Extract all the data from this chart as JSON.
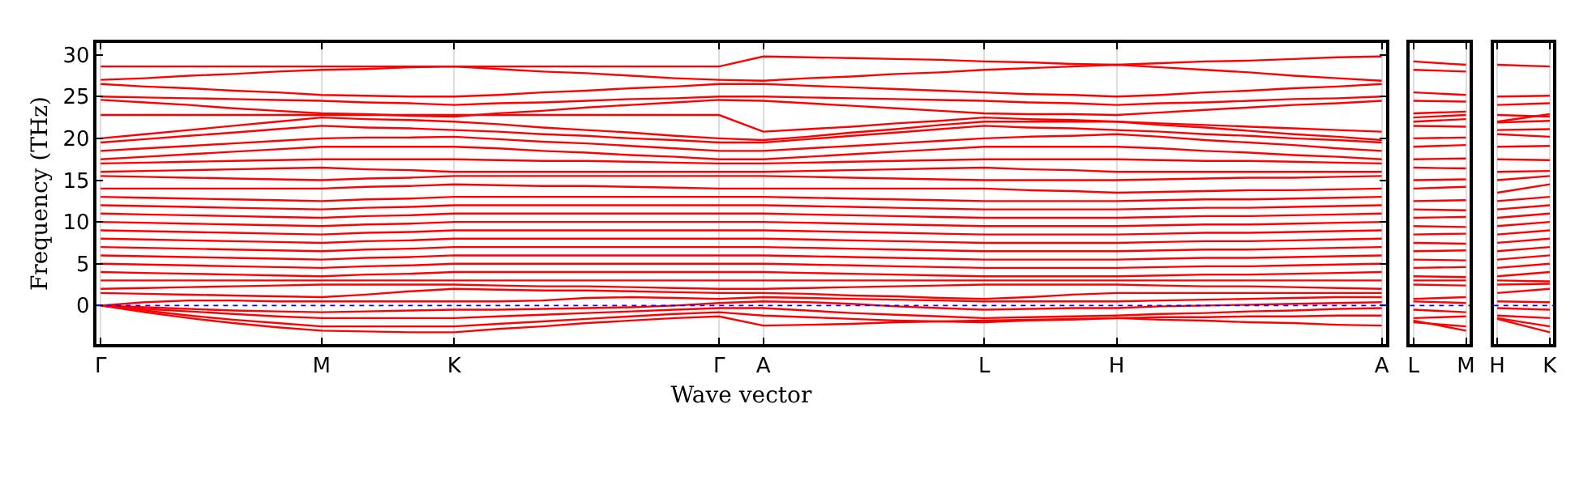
{
  "chart_data": [
    {
      "type": "line",
      "ylabel": "Frequency (THz)",
      "xlabel": "Wave vector",
      "categories": [
        "Γ",
        null,
        null,
        null,
        null,
        "M",
        null,
        null,
        "K",
        null,
        null,
        null,
        null,
        null,
        "Γ",
        "A",
        null,
        null,
        null,
        null,
        "L",
        null,
        null,
        "H",
        null,
        null,
        null,
        null,
        null,
        "A"
      ],
      "ylim": [
        -4.6,
        31.4
      ],
      "yticks": [
        0,
        5,
        10,
        15,
        20,
        25,
        30
      ],
      "grid": "x",
      "line_style": "solid",
      "marker": "none",
      "ref_lines": [
        {
          "axis": "y",
          "value": 0,
          "color": "#0000ff",
          "line_style": "dotted"
        }
      ],
      "series": [
        {
          "color": "#ff0000",
          "values": [
            28.6,
            28.6,
            28.6,
            28.6,
            28.6,
            28.6,
            28.6,
            28.6,
            28.6,
            28.6,
            28.6,
            28.6,
            28.6,
            28.6,
            28.6,
            29.8,
            29.7,
            29.6,
            29.5,
            29.4,
            29.2,
            29.1,
            28.9,
            28.8,
            29.0,
            29.2,
            29.3,
            29.5,
            29.7,
            29.8
          ]
        },
        {
          "color": "#ff0000",
          "values": [
            27.0,
            27.2,
            27.5,
            27.7,
            28.0,
            28.2,
            28.3,
            28.5,
            28.6,
            28.3,
            28.0,
            27.8,
            27.5,
            27.2,
            27.0,
            26.9,
            27.2,
            27.4,
            27.7,
            27.9,
            28.2,
            28.4,
            28.6,
            28.8,
            28.5,
            28.2,
            27.9,
            27.5,
            27.2,
            26.9
          ]
        },
        {
          "color": "#ff0000",
          "values": [
            26.5,
            26.2,
            26.0,
            25.7,
            25.5,
            25.2,
            25.1,
            25.0,
            25.0,
            25.2,
            25.5,
            25.7,
            26.0,
            26.2,
            26.5,
            26.5,
            26.3,
            26.1,
            25.9,
            25.7,
            25.5,
            25.3,
            25.2,
            25.0,
            25.2,
            25.5,
            25.7,
            26.0,
            26.2,
            26.5
          ]
        },
        {
          "color": "#ff0000",
          "values": [
            25.0,
            24.9,
            24.8,
            24.7,
            24.6,
            24.5,
            24.3,
            24.2,
            24.0,
            24.2,
            24.3,
            24.5,
            24.7,
            24.8,
            25.0,
            25.0,
            24.9,
            24.8,
            24.7,
            24.6,
            24.5,
            24.3,
            24.2,
            24.0,
            24.2,
            24.3,
            24.5,
            24.7,
            24.8,
            25.0
          ]
        },
        {
          "color": "#ff0000",
          "values": [
            24.6,
            24.3,
            24.0,
            23.6,
            23.3,
            23.0,
            22.9,
            22.7,
            22.6,
            23.0,
            23.3,
            23.7,
            24.0,
            24.3,
            24.6,
            24.5,
            24.2,
            23.9,
            23.6,
            23.3,
            23.0,
            22.9,
            22.9,
            22.8,
            23.1,
            23.4,
            23.7,
            24.0,
            24.2,
            24.5
          ]
        },
        {
          "color": "#ff0000",
          "values": [
            22.8,
            22.8,
            22.8,
            22.8,
            22.8,
            22.8,
            22.8,
            22.8,
            22.8,
            22.8,
            22.8,
            22.8,
            22.8,
            22.8,
            22.8,
            20.8,
            21.1,
            21.4,
            21.8,
            22.1,
            22.5,
            22.3,
            22.2,
            22.0,
            21.8,
            21.6,
            21.4,
            21.2,
            21.0,
            20.8
          ]
        },
        {
          "color": "#ff0000",
          "values": [
            20.0,
            20.5,
            21.0,
            21.5,
            22.0,
            22.5,
            22.3,
            22.2,
            22.0,
            21.7,
            21.3,
            21.0,
            20.7,
            20.3,
            20.0,
            19.8,
            20.2,
            20.7,
            21.1,
            21.6,
            22.0,
            22.0,
            22.0,
            22.0,
            21.6,
            21.3,
            20.9,
            20.5,
            20.2,
            19.8
          ]
        },
        {
          "color": "#ff0000",
          "values": [
            19.5,
            19.9,
            20.3,
            20.7,
            21.1,
            21.5,
            21.3,
            21.2,
            21.0,
            20.8,
            20.5,
            20.3,
            20.0,
            19.8,
            19.5,
            19.5,
            19.9,
            20.3,
            20.7,
            21.1,
            21.5,
            21.3,
            21.2,
            21.0,
            20.8,
            20.5,
            20.3,
            20.0,
            19.8,
            19.5
          ]
        },
        {
          "color": "#ff0000",
          "values": [
            18.5,
            18.8,
            19.1,
            19.4,
            19.7,
            20.0,
            20.1,
            20.1,
            20.2,
            19.9,
            19.6,
            19.4,
            19.1,
            18.8,
            18.5,
            18.5,
            18.8,
            19.1,
            19.4,
            19.7,
            20.0,
            20.2,
            20.3,
            20.5,
            20.2,
            19.8,
            19.5,
            19.2,
            18.8,
            18.5
          ]
        },
        {
          "color": "#ff0000",
          "values": [
            17.5,
            17.8,
            18.1,
            18.4,
            18.7,
            19.0,
            19.0,
            19.0,
            19.0,
            18.8,
            18.5,
            18.3,
            18.0,
            17.8,
            17.5,
            17.5,
            17.8,
            18.1,
            18.4,
            18.7,
            19.0,
            19.0,
            19.0,
            19.0,
            18.8,
            18.5,
            18.3,
            18.0,
            17.8,
            17.5
          ]
        },
        {
          "color": "#ff0000",
          "values": [
            17.0,
            17.1,
            17.2,
            17.3,
            17.4,
            17.5,
            17.5,
            17.5,
            17.5,
            17.4,
            17.3,
            17.3,
            17.2,
            17.1,
            17.0,
            17.0,
            17.1,
            17.2,
            17.3,
            17.4,
            17.5,
            17.5,
            17.5,
            17.5,
            17.4,
            17.3,
            17.3,
            17.2,
            17.1,
            17.0
          ]
        },
        {
          "color": "#ff0000",
          "values": [
            16.0,
            16.1,
            16.2,
            16.3,
            16.4,
            16.5,
            16.3,
            16.2,
            16.0,
            16.0,
            16.0,
            16.0,
            16.0,
            16.0,
            16.0,
            16.0,
            16.1,
            16.2,
            16.3,
            16.4,
            16.5,
            16.3,
            16.2,
            16.0,
            16.0,
            16.0,
            16.0,
            16.0,
            16.0,
            16.0
          ]
        },
        {
          "color": "#ff0000",
          "values": [
            15.5,
            15.4,
            15.3,
            15.2,
            15.1,
            15.0,
            15.2,
            15.3,
            15.5,
            15.5,
            15.5,
            15.5,
            15.5,
            15.5,
            15.5,
            15.5,
            15.4,
            15.3,
            15.2,
            15.1,
            15.0,
            15.0,
            15.0,
            15.0,
            15.1,
            15.2,
            15.3,
            15.3,
            15.4,
            15.5
          ]
        },
        {
          "color": "#ff0000",
          "values": [
            14.0,
            14.0,
            14.0,
            14.0,
            14.0,
            14.0,
            14.2,
            14.3,
            14.5,
            14.4,
            14.3,
            14.3,
            14.2,
            14.1,
            14.0,
            14.0,
            14.0,
            14.0,
            14.0,
            14.0,
            14.0,
            13.8,
            13.7,
            13.5,
            13.6,
            13.7,
            13.8,
            13.8,
            13.9,
            14.0
          ]
        },
        {
          "color": "#ff0000",
          "values": [
            13.0,
            12.9,
            12.8,
            12.7,
            12.6,
            12.5,
            12.7,
            12.8,
            13.0,
            13.0,
            13.0,
            13.0,
            13.0,
            13.0,
            13.0,
            13.0,
            12.9,
            12.8,
            12.7,
            12.6,
            12.5,
            12.5,
            12.5,
            12.5,
            12.6,
            12.7,
            12.7,
            12.8,
            12.9,
            13.0
          ]
        },
        {
          "color": "#ff0000",
          "values": [
            12.0,
            11.9,
            11.8,
            11.7,
            11.6,
            11.5,
            11.7,
            11.8,
            12.0,
            12.0,
            12.0,
            12.0,
            12.0,
            12.0,
            12.0,
            12.0,
            11.9,
            11.8,
            11.7,
            11.6,
            11.5,
            11.5,
            11.5,
            11.5,
            11.6,
            11.7,
            11.7,
            11.8,
            11.9,
            12.0
          ]
        },
        {
          "color": "#ff0000",
          "values": [
            11.0,
            10.9,
            10.8,
            10.7,
            10.6,
            10.5,
            10.7,
            10.8,
            11.0,
            11.0,
            11.0,
            11.0,
            11.0,
            11.0,
            11.0,
            11.0,
            10.9,
            10.8,
            10.7,
            10.6,
            10.5,
            10.5,
            10.5,
            10.5,
            10.6,
            10.7,
            10.7,
            10.8,
            10.9,
            11.0
          ]
        },
        {
          "color": "#ff0000",
          "values": [
            10.0,
            9.9,
            9.8,
            9.7,
            9.6,
            9.5,
            9.7,
            9.8,
            10.0,
            10.0,
            10.0,
            10.0,
            10.0,
            10.0,
            10.0,
            10.0,
            9.9,
            9.8,
            9.7,
            9.6,
            9.5,
            9.5,
            9.5,
            9.5,
            9.6,
            9.7,
            9.7,
            9.8,
            9.9,
            10.0
          ]
        },
        {
          "color": "#ff0000",
          "values": [
            9.0,
            8.9,
            8.8,
            8.7,
            8.6,
            8.5,
            8.7,
            8.8,
            9.0,
            9.0,
            9.0,
            9.0,
            9.0,
            9.0,
            9.0,
            9.0,
            8.9,
            8.8,
            8.7,
            8.6,
            8.5,
            8.5,
            8.5,
            8.5,
            8.6,
            8.7,
            8.7,
            8.8,
            8.9,
            9.0
          ]
        },
        {
          "color": "#ff0000",
          "values": [
            8.0,
            7.9,
            7.8,
            7.7,
            7.6,
            7.5,
            7.7,
            7.8,
            8.0,
            8.0,
            8.0,
            8.0,
            8.0,
            8.0,
            8.0,
            8.0,
            7.9,
            7.8,
            7.7,
            7.6,
            7.5,
            7.5,
            7.5,
            7.5,
            7.6,
            7.7,
            7.7,
            7.8,
            7.9,
            8.0
          ]
        },
        {
          "color": "#ff0000",
          "values": [
            7.0,
            6.9,
            6.8,
            6.7,
            6.6,
            6.5,
            6.7,
            6.8,
            7.0,
            7.0,
            7.0,
            7.0,
            7.0,
            7.0,
            7.0,
            7.0,
            6.9,
            6.8,
            6.7,
            6.6,
            6.5,
            6.5,
            6.5,
            6.5,
            6.6,
            6.7,
            6.7,
            6.8,
            6.9,
            7.0
          ]
        },
        {
          "color": "#ff0000",
          "values": [
            6.0,
            5.9,
            5.8,
            5.7,
            5.6,
            5.5,
            5.7,
            5.8,
            6.0,
            6.0,
            6.0,
            6.0,
            6.0,
            6.0,
            6.0,
            6.0,
            5.9,
            5.8,
            5.7,
            5.6,
            5.5,
            5.5,
            5.5,
            5.5,
            5.6,
            5.7,
            5.7,
            5.8,
            5.9,
            6.0
          ]
        },
        {
          "color": "#ff0000",
          "values": [
            5.0,
            4.9,
            4.8,
            4.7,
            4.6,
            4.5,
            4.7,
            4.8,
            5.0,
            5.0,
            5.0,
            5.0,
            5.0,
            5.0,
            5.0,
            5.0,
            4.9,
            4.8,
            4.7,
            4.6,
            4.5,
            4.5,
            4.5,
            4.5,
            4.6,
            4.7,
            4.7,
            4.8,
            4.9,
            5.0
          ]
        },
        {
          "color": "#ff0000",
          "values": [
            4.0,
            3.9,
            3.8,
            3.7,
            3.6,
            3.5,
            3.7,
            3.8,
            4.0,
            4.0,
            4.0,
            4.0,
            4.0,
            4.0,
            4.0,
            4.0,
            3.9,
            3.8,
            3.7,
            3.6,
            3.5,
            3.5,
            3.5,
            3.5,
            3.6,
            3.7,
            3.7,
            3.8,
            3.9,
            4.0
          ]
        },
        {
          "color": "#ff0000",
          "values": [
            3.0,
            3.0,
            3.0,
            3.0,
            3.0,
            3.0,
            3.0,
            3.0,
            3.0,
            3.0,
            3.0,
            3.0,
            3.0,
            3.0,
            3.0,
            3.0,
            3.0,
            3.0,
            3.0,
            3.0,
            3.0,
            3.0,
            3.0,
            3.0,
            3.0,
            3.0,
            3.0,
            3.0,
            3.0,
            3.0
          ]
        },
        {
          "color": "#ff0000",
          "values": [
            2.0,
            2.1,
            2.2,
            2.3,
            2.4,
            2.5,
            2.5,
            2.5,
            2.5,
            2.4,
            2.3,
            2.3,
            2.2,
            2.1,
            2.0,
            2.0,
            2.1,
            2.2,
            2.3,
            2.4,
            2.5,
            2.5,
            2.5,
            2.5,
            2.4,
            2.3,
            2.3,
            2.2,
            2.1,
            2.0
          ]
        },
        {
          "color": "#ff0000",
          "values": [
            1.5,
            1.4,
            1.3,
            1.2,
            1.1,
            1.0,
            1.3,
            1.7,
            2.0,
            1.9,
            1.8,
            1.8,
            1.7,
            1.6,
            1.5,
            1.5,
            1.4,
            1.2,
            1.1,
            0.9,
            0.8,
            1.0,
            1.3,
            1.5,
            1.5,
            1.5,
            1.5,
            1.5,
            1.5,
            1.5
          ]
        },
        {
          "color": "#ff0000",
          "values": [
            0,
            0.4,
            0.6,
            0.6,
            0.5,
            0.5,
            0.5,
            0.5,
            0.5,
            0.5,
            0.6,
            0.9,
            1.0,
            0.9,
            0.8,
            1.0,
            0.9,
            0.8,
            0.7,
            0.6,
            0.5,
            0.5,
            0.5,
            0.5,
            0.6,
            0.7,
            0.8,
            0.9,
            1.0,
            1.0
          ]
        },
        {
          "color": "#ff0000",
          "values": [
            0,
            -0.2,
            -0.4,
            -0.6,
            -0.7,
            -0.8,
            -0.7,
            -0.6,
            -0.5,
            -0.5,
            -0.4,
            -0.3,
            -0.2,
            0.0,
            0.3,
            0.5,
            0.4,
            0.2,
            -0.1,
            -0.3,
            -0.5,
            -0.4,
            -0.3,
            -0.3,
            -0.1,
            0.0,
            0.1,
            0.2,
            0.3,
            0.4
          ]
        },
        {
          "color": "#ff0000",
          "values": [
            0,
            -0.4,
            -0.7,
            -1.0,
            -1.3,
            -1.5,
            -1.5,
            -1.5,
            -1.5,
            -1.3,
            -1.1,
            -0.9,
            -0.7,
            -0.5,
            -0.3,
            -0.3,
            -0.6,
            -0.9,
            -1.1,
            -1.3,
            -1.5,
            -1.4,
            -1.3,
            -1.2,
            -1.0,
            -0.9,
            -0.7,
            -0.6,
            -0.4,
            -0.3
          ]
        },
        {
          "color": "#ff0000",
          "values": [
            0,
            -0.6,
            -1.2,
            -1.7,
            -2.1,
            -2.5,
            -2.5,
            -2.5,
            -2.5,
            -2.2,
            -1.9,
            -1.6,
            -1.3,
            -1.0,
            -0.8,
            -1.2,
            -1.4,
            -1.6,
            -1.8,
            -1.9,
            -2.0,
            -1.8,
            -1.7,
            -1.5,
            -1.4,
            -1.4,
            -1.3,
            -1.3,
            -1.2,
            -1.2
          ]
        },
        {
          "color": "#ff0000",
          "values": [
            0,
            -0.8,
            -1.5,
            -2.1,
            -2.6,
            -3.0,
            -3.1,
            -3.2,
            -3.2,
            -2.8,
            -2.5,
            -2.1,
            -1.8,
            -1.5,
            -1.3,
            -2.4,
            -2.3,
            -2.2,
            -2.0,
            -1.9,
            -1.8,
            -1.7,
            -1.6,
            -1.5,
            -1.7,
            -1.8,
            -2.0,
            -2.1,
            -2.3,
            -2.4
          ]
        }
      ]
    },
    {
      "type": "line",
      "categories": [
        "L",
        "M"
      ],
      "ylim": [
        -4.6,
        31.4
      ],
      "yticks": [
        0,
        5,
        10,
        15,
        20,
        25,
        30
      ],
      "tick_labels": "x",
      "grid": "x",
      "line_style": "solid",
      "marker": "none",
      "ref_lines": [
        {
          "axis": "y",
          "value": 0,
          "color": "#0000ff",
          "line_style": "dotted"
        }
      ],
      "series": [
        {
          "color": "#ff0000",
          "values": [
            29.2,
            28.8
          ]
        },
        {
          "color": "#ff0000",
          "values": [
            28.2,
            28.0
          ]
        },
        {
          "color": "#ff0000",
          "values": [
            25.5,
            25.2
          ]
        },
        {
          "color": "#ff0000",
          "values": [
            24.5,
            24.4
          ]
        },
        {
          "color": "#ff0000",
          "values": [
            23.0,
            23.2
          ]
        },
        {
          "color": "#ff0000",
          "values": [
            22.5,
            22.8
          ]
        },
        {
          "color": "#ff0000",
          "values": [
            22.0,
            22.3
          ]
        },
        {
          "color": "#ff0000",
          "values": [
            21.5,
            21.4
          ]
        },
        {
          "color": "#ff0000",
          "values": [
            20.0,
            20.1
          ]
        },
        {
          "color": "#ff0000",
          "values": [
            19.0,
            19.2
          ]
        },
        {
          "color": "#ff0000",
          "values": [
            17.5,
            17.6
          ]
        },
        {
          "color": "#ff0000",
          "values": [
            16.5,
            16.4
          ]
        },
        {
          "color": "#ff0000",
          "values": [
            15.0,
            15.1
          ]
        },
        {
          "color": "#ff0000",
          "values": [
            14.0,
            14.2
          ]
        },
        {
          "color": "#ff0000",
          "values": [
            12.5,
            12.6
          ]
        },
        {
          "color": "#ff0000",
          "values": [
            11.5,
            11.4
          ]
        },
        {
          "color": "#ff0000",
          "values": [
            10.5,
            10.6
          ]
        },
        {
          "color": "#ff0000",
          "values": [
            9.5,
            9.4
          ]
        },
        {
          "color": "#ff0000",
          "values": [
            8.5,
            8.6
          ]
        },
        {
          "color": "#ff0000",
          "values": [
            7.5,
            7.4
          ]
        },
        {
          "color": "#ff0000",
          "values": [
            6.5,
            6.6
          ]
        },
        {
          "color": "#ff0000",
          "values": [
            5.5,
            5.4
          ]
        },
        {
          "color": "#ff0000",
          "values": [
            4.5,
            4.6
          ]
        },
        {
          "color": "#ff0000",
          "values": [
            3.5,
            3.4
          ]
        },
        {
          "color": "#ff0000",
          "values": [
            3.0,
            3.0
          ]
        },
        {
          "color": "#ff0000",
          "values": [
            2.5,
            2.4
          ]
        },
        {
          "color": "#ff0000",
          "values": [
            0.8,
            1.0
          ]
        },
        {
          "color": "#ff0000",
          "values": [
            0.5,
            0.3
          ]
        },
        {
          "color": "#ff0000",
          "values": [
            -0.5,
            -0.8
          ]
        },
        {
          "color": "#ff0000",
          "values": [
            -1.5,
            -1.3
          ]
        },
        {
          "color": "#ff0000",
          "values": [
            -2.0,
            -2.5
          ]
        },
        {
          "color": "#ff0000",
          "values": [
            -1.8,
            -3.0
          ]
        }
      ]
    },
    {
      "type": "line",
      "categories": [
        "H",
        "K"
      ],
      "ylim": [
        -4.6,
        31.4
      ],
      "yticks": [
        0,
        5,
        10,
        15,
        20,
        25,
        30
      ],
      "tick_labels": "x",
      "grid": "x",
      "line_style": "solid",
      "marker": "none",
      "ref_lines": [
        {
          "axis": "y",
          "value": 0,
          "color": "#0000ff",
          "line_style": "dotted"
        }
      ],
      "series": [
        {
          "color": "#ff0000",
          "values": [
            28.8,
            28.6
          ]
        },
        {
          "color": "#ff0000",
          "values": [
            25.0,
            25.1
          ]
        },
        {
          "color": "#ff0000",
          "values": [
            24.0,
            24.2
          ]
        },
        {
          "color": "#ff0000",
          "values": [
            22.8,
            22.6
          ]
        },
        {
          "color": "#ff0000",
          "values": [
            22.0,
            22.9
          ]
        },
        {
          "color": "#ff0000",
          "values": [
            21.9,
            22.1
          ]
        },
        {
          "color": "#ff0000",
          "values": [
            21.0,
            21.1
          ]
        },
        {
          "color": "#ff0000",
          "values": [
            20.5,
            20.2
          ]
        },
        {
          "color": "#ff0000",
          "values": [
            19.0,
            19.1
          ]
        },
        {
          "color": "#ff0000",
          "values": [
            17.5,
            17.4
          ]
        },
        {
          "color": "#ff0000",
          "values": [
            16.0,
            16.1
          ]
        },
        {
          "color": "#ff0000",
          "values": [
            15.0,
            15.5
          ]
        },
        {
          "color": "#ff0000",
          "values": [
            13.5,
            14.5
          ]
        },
        {
          "color": "#ff0000",
          "values": [
            12.5,
            13.0
          ]
        },
        {
          "color": "#ff0000",
          "values": [
            11.5,
            12.0
          ]
        },
        {
          "color": "#ff0000",
          "values": [
            10.5,
            11.0
          ]
        },
        {
          "color": "#ff0000",
          "values": [
            9.5,
            10.0
          ]
        },
        {
          "color": "#ff0000",
          "values": [
            8.5,
            9.0
          ]
        },
        {
          "color": "#ff0000",
          "values": [
            7.5,
            8.0
          ]
        },
        {
          "color": "#ff0000",
          "values": [
            6.5,
            7.0
          ]
        },
        {
          "color": "#ff0000",
          "values": [
            5.5,
            6.0
          ]
        },
        {
          "color": "#ff0000",
          "values": [
            4.5,
            5.0
          ]
        },
        {
          "color": "#ff0000",
          "values": [
            3.5,
            4.0
          ]
        },
        {
          "color": "#ff0000",
          "values": [
            3.0,
            2.9
          ]
        },
        {
          "color": "#ff0000",
          "values": [
            2.5,
            2.6
          ]
        },
        {
          "color": "#ff0000",
          "values": [
            1.5,
            2.0
          ]
        },
        {
          "color": "#ff0000",
          "values": [
            0.5,
            0.4
          ]
        },
        {
          "color": "#ff0000",
          "values": [
            -0.3,
            -0.5
          ]
        },
        {
          "color": "#ff0000",
          "values": [
            -1.2,
            -1.5
          ]
        },
        {
          "color": "#ff0000",
          "values": [
            -1.5,
            -2.5
          ]
        },
        {
          "color": "#ff0000",
          "values": [
            -1.6,
            -3.2
          ]
        }
      ]
    }
  ]
}
